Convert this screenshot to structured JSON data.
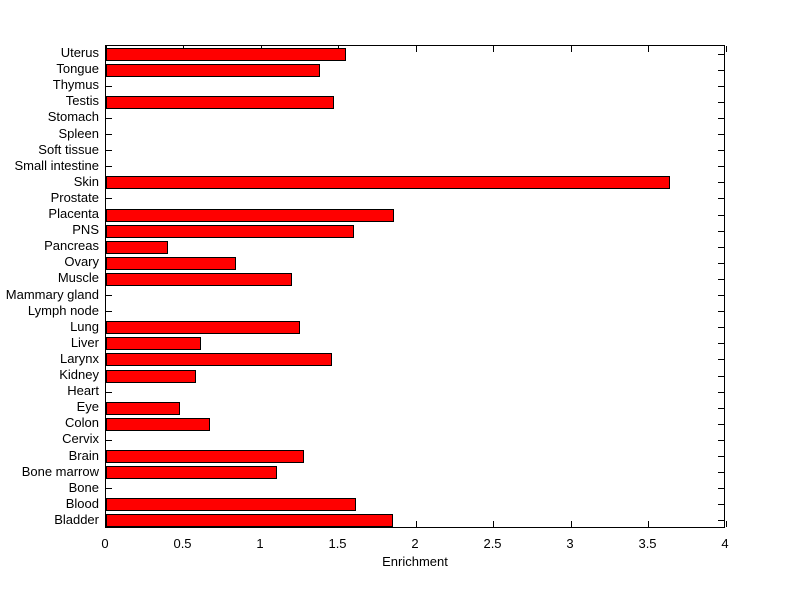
{
  "figure": {
    "background_color": "#ffffff",
    "axis_color": "#000000"
  },
  "chart_data": {
    "type": "bar",
    "orientation": "horizontal",
    "title": "",
    "xlabel": "Enrichment",
    "ylabel": "",
    "xlim": [
      0,
      4
    ],
    "xticks": [
      0,
      0.5,
      1,
      1.5,
      2,
      2.5,
      3,
      3.5,
      4
    ],
    "xtick_labels": [
      "0",
      "0.5",
      "1",
      "1.5",
      "2",
      "2.5",
      "3",
      "3.5",
      "4"
    ],
    "grid": false,
    "legend": false,
    "bar_color": "#ff0000",
    "bar_edge_color": "#000000",
    "categories": [
      "Uterus",
      "Tongue",
      "Thymus",
      "Testis",
      "Stomach",
      "Spleen",
      "Soft tissue",
      "Small intestine",
      "Skin",
      "Prostate",
      "Placenta",
      "PNS",
      "Pancreas",
      "Ovary",
      "Muscle",
      "Mammary gland",
      "Lymph node",
      "Lung",
      "Liver",
      "Larynx",
      "Kidney",
      "Heart",
      "Eye",
      "Colon",
      "Cervix",
      "Brain",
      "Bone marrow",
      "Bone",
      "Blood",
      "Bladder"
    ],
    "values": [
      1.55,
      1.38,
      0,
      1.47,
      0,
      0,
      0,
      0,
      3.64,
      0,
      1.86,
      1.6,
      0.4,
      0.84,
      1.2,
      0,
      0,
      1.25,
      0.61,
      1.46,
      0.58,
      0,
      0.48,
      0.67,
      0,
      1.28,
      1.1,
      0,
      1.61,
      1.85
    ]
  }
}
